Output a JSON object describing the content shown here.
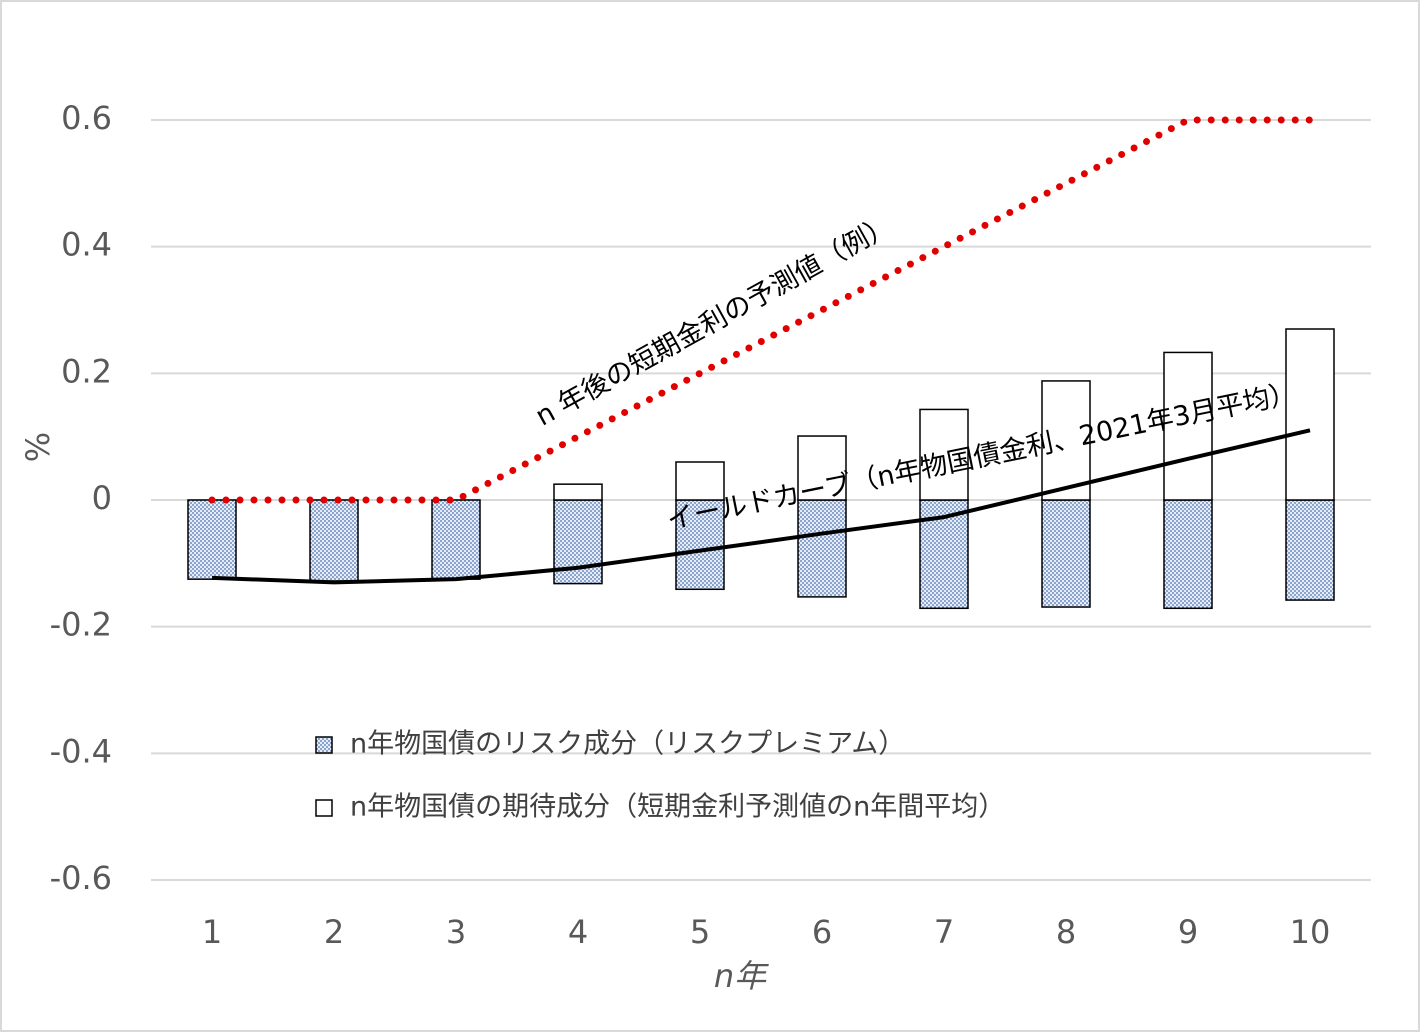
{
  "chart_data": {
    "type": "bar",
    "stacked": true,
    "categories": [
      "1",
      "2",
      "3",
      "4",
      "5",
      "6",
      "7",
      "8",
      "9",
      "10"
    ],
    "series": [
      {
        "name": "n年物国債のリスク成分（リスクプレミアム）",
        "color": "#4a6fb0",
        "pattern": "dots",
        "values": [
          -0.125,
          -0.128,
          -0.125,
          -0.132,
          -0.141,
          -0.153,
          -0.171,
          -0.169,
          -0.171,
          -0.158
        ]
      },
      {
        "name": "n年物国債の期待成分（短期金利予測値のn年間平均）",
        "color": "#ffffff",
        "values": [
          0,
          0,
          0,
          0.025,
          0.06,
          0.101,
          0.143,
          0.188,
          0.233,
          0.27
        ]
      },
      {
        "type": "line",
        "color": "#e00000",
        "style": "dotted",
        "values": [
          0,
          0,
          0,
          0.1,
          0.2,
          0.3,
          0.4,
          0.5,
          0.6,
          0.6
        ]
      },
      {
        "type": "line",
        "color": "#000000",
        "style": "solid",
        "values": [
          -0.123,
          -0.13,
          -0.125,
          -0.107,
          -0.08,
          -0.053,
          -0.027,
          0.019,
          0.065,
          0.11
        ]
      }
    ],
    "ylim": [
      -0.6,
      0.6
    ],
    "yticks": [
      -0.6,
      -0.4,
      -0.2,
      0,
      0.2,
      0.4,
      0.6
    ],
    "grid": true,
    "y_label": "%",
    "x_label": "n年",
    "annotations": [
      "n 年後の短期金利の予測値（例）",
      "イールドカーブ（n年物国債金利、2021年3月平均）"
    ]
  }
}
